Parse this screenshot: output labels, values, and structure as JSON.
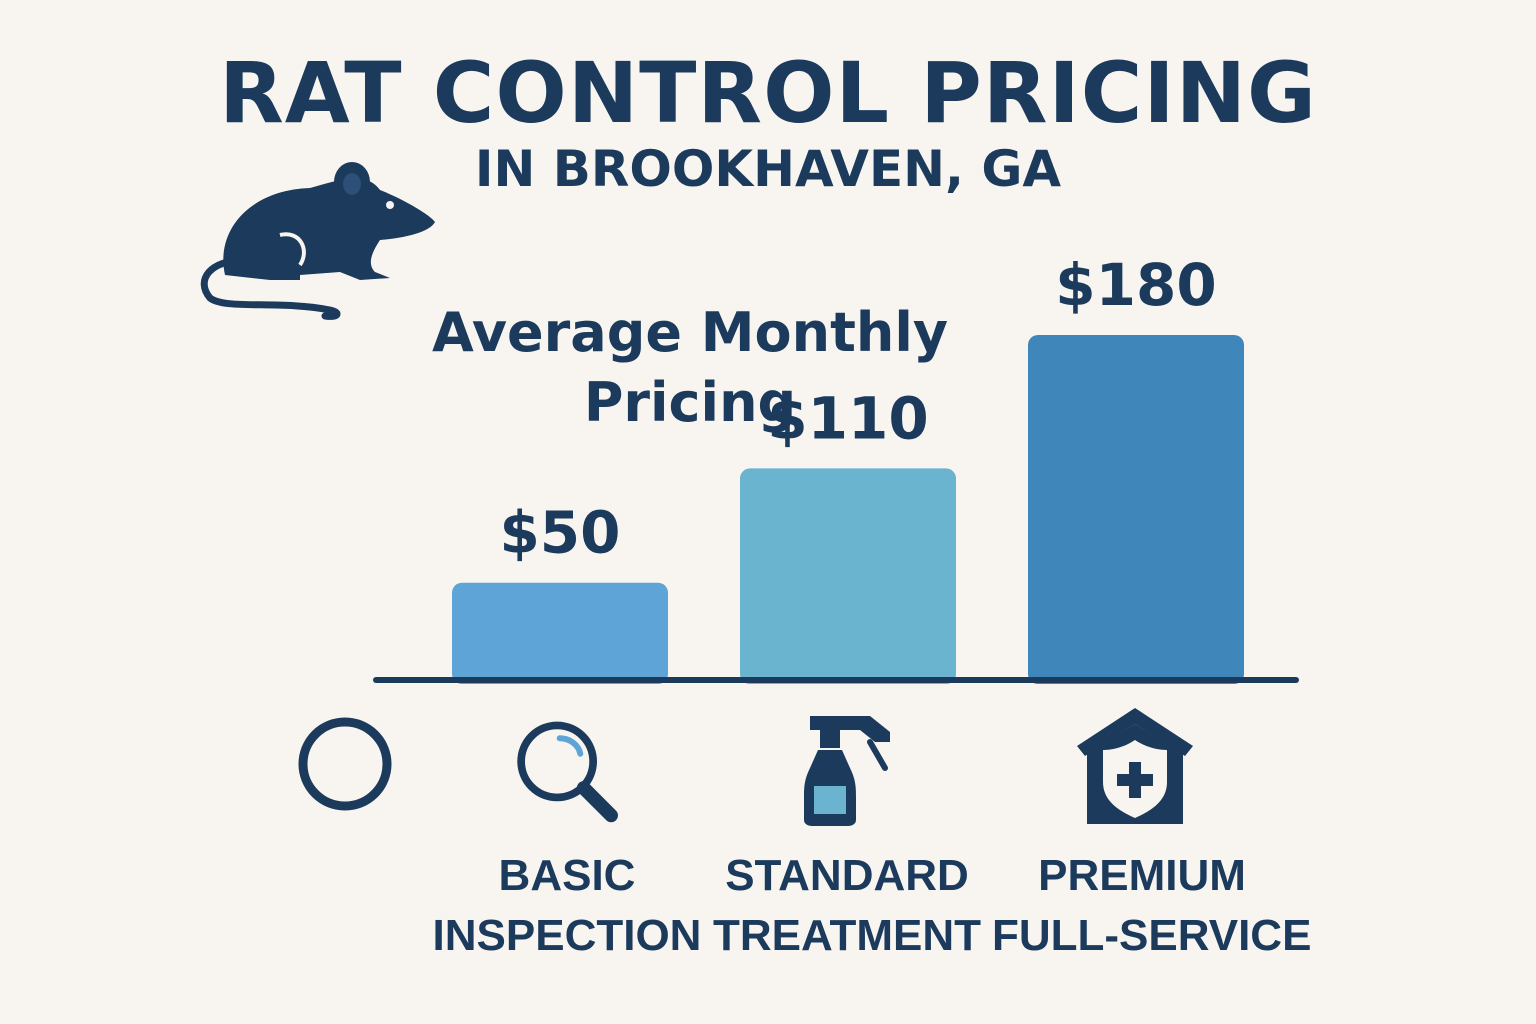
{
  "header": {
    "title": "RAT CONTROL PRICING",
    "subtitle": "IN BROOKHAVEN, GA"
  },
  "chart_heading_line1": "Average Monthly",
  "chart_heading_line2": "Pricing",
  "icons": [
    "rat-icon",
    "circle-icon",
    "magnifier-icon",
    "spray-bottle-icon",
    "house-shield-icon"
  ],
  "chart_data": {
    "type": "bar",
    "title": "Average Monthly Pricing",
    "categories": [
      "BASIC INSPECTION",
      "STANDARD TREATMENT",
      "PREMIUM FULL-SERVICE"
    ],
    "values": [
      50,
      110,
      180
    ],
    "value_labels": [
      "$50",
      "$110",
      "$180"
    ],
    "bar_colors": [
      "#5fa4d6",
      "#6ab4cf",
      "#3f86bb"
    ],
    "ylim": [
      0,
      180
    ],
    "grid": false,
    "legend": "none"
  },
  "categories": [
    {
      "line1": "BASIC",
      "line2": "INSPECTION"
    },
    {
      "line1": "STANDARD",
      "line2": "TREATMENT"
    },
    {
      "line1": "PREMIUM",
      "line2": "FULL-SERVICE"
    }
  ],
  "colors": {
    "background": "#f8f5f0",
    "ink": "#1b3a5c"
  }
}
